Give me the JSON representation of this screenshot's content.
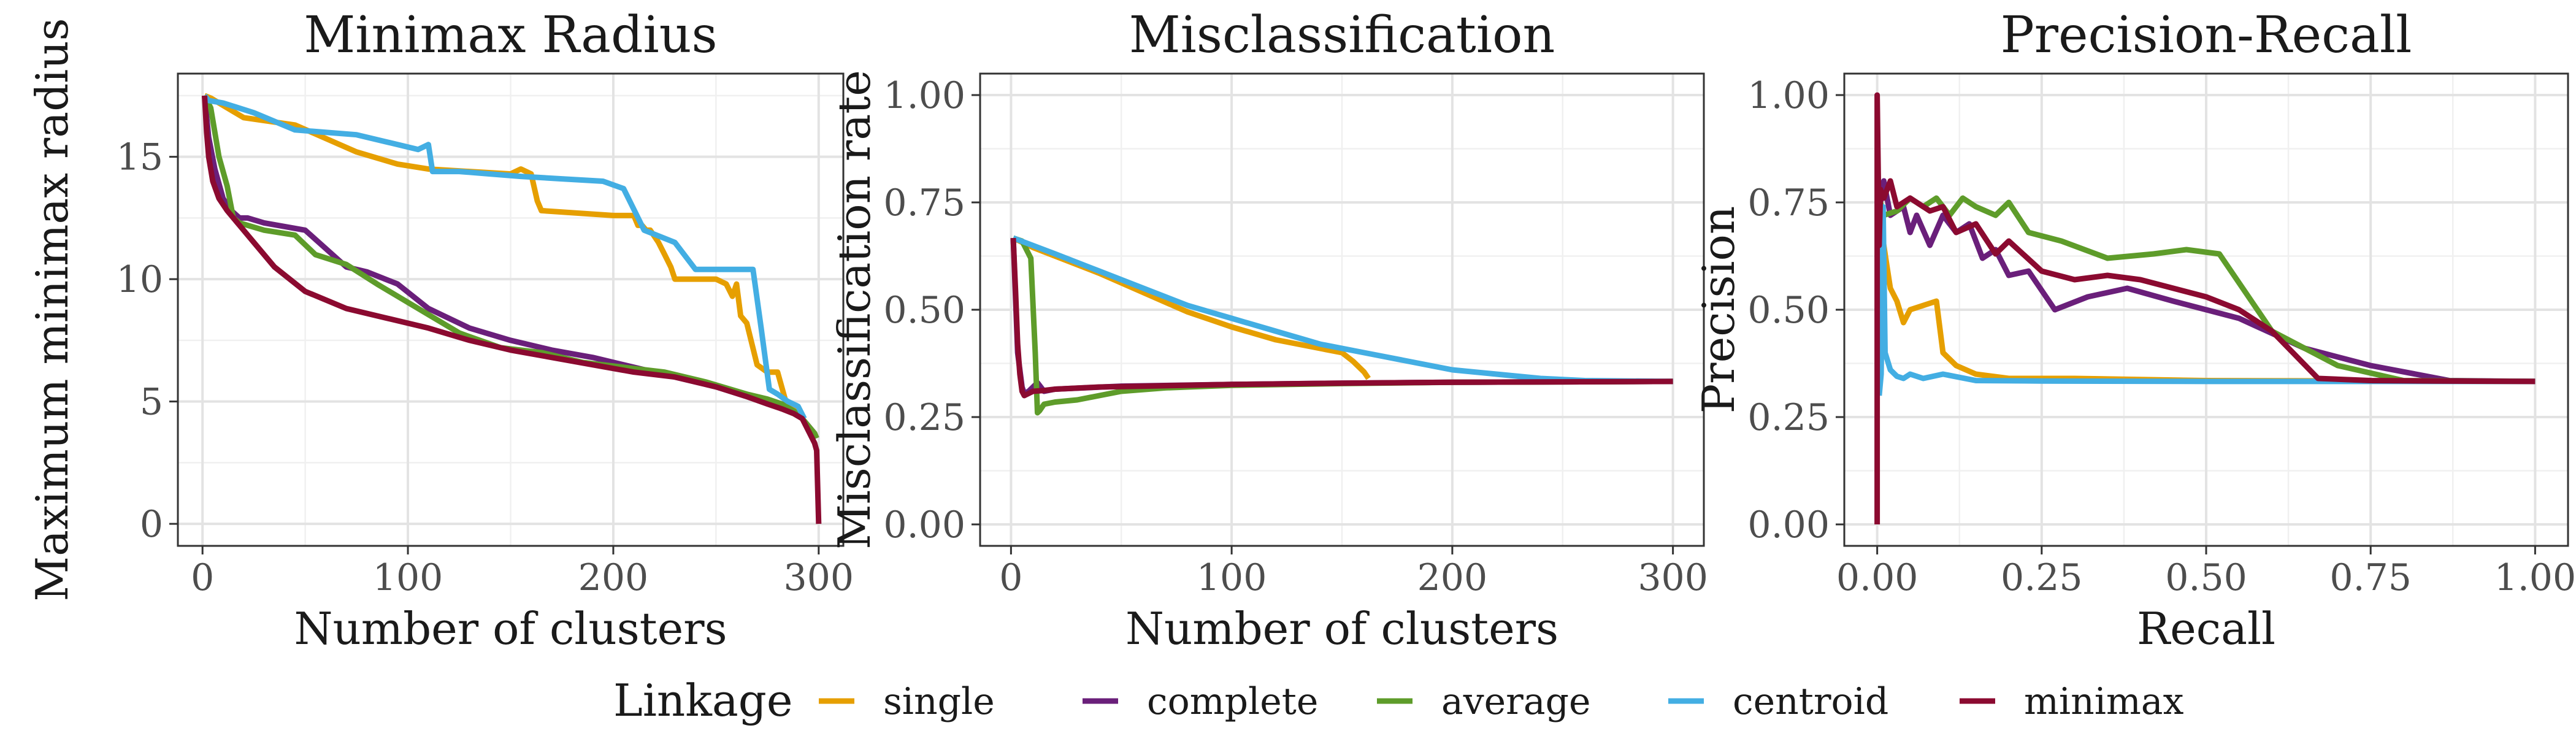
{
  "legend": {
    "title": "Linkage",
    "position": "bottom",
    "items": [
      {
        "key": "single",
        "label": "single",
        "color": "#E69F00"
      },
      {
        "key": "complete",
        "label": "complete",
        "color": "#6A1F7A"
      },
      {
        "key": "average",
        "label": "average",
        "color": "#5E9C2A"
      },
      {
        "key": "centroid",
        "label": "centroid",
        "color": "#43AEE3"
      },
      {
        "key": "minimax",
        "label": "minimax",
        "color": "#8B0A30"
      }
    ]
  },
  "chart_data": [
    {
      "type": "line",
      "title": "Minimax Radius",
      "xlabel": "Number of clusters",
      "ylabel": "Maximum minimax radius",
      "xlim": [
        -12,
        312
      ],
      "ylim": [
        -0.9,
        18.4
      ],
      "xticks": [
        0,
        100,
        200,
        300
      ],
      "yticks": [
        0,
        5,
        10,
        15
      ],
      "grid": true,
      "series": [
        {
          "key": "single",
          "x": [
            1,
            4,
            20,
            45,
            75,
            95,
            110,
            150,
            155,
            160,
            163,
            165,
            200,
            210,
            212,
            214,
            216,
            218,
            222,
            225,
            228,
            230,
            250,
            255,
            258,
            260,
            262,
            265,
            270,
            275,
            280,
            284,
            287,
            290
          ],
          "y": [
            17.5,
            17.4,
            16.6,
            16.3,
            15.2,
            14.7,
            14.5,
            14.3,
            14.5,
            14.3,
            13.2,
            12.8,
            12.6,
            12.6,
            12.2,
            12.2,
            12.0,
            12.0,
            11.5,
            11.0,
            10.5,
            10.0,
            10.0,
            9.8,
            9.3,
            9.8,
            8.5,
            8.2,
            6.5,
            6.2,
            6.2,
            5.0,
            4.9,
            4.5
          ]
        },
        {
          "key": "complete",
          "x": [
            1,
            3,
            6,
            10,
            14,
            18,
            22,
            30,
            50,
            70,
            80,
            95,
            110,
            130,
            150,
            170,
            190,
            210,
            230,
            250,
            265,
            275,
            282,
            286,
            290,
            293,
            296,
            298,
            299
          ],
          "y": [
            17.5,
            15.8,
            14.5,
            13.3,
            12.8,
            12.5,
            12.5,
            12.3,
            12.0,
            10.5,
            10.3,
            9.8,
            8.8,
            8.0,
            7.5,
            7.1,
            6.8,
            6.4,
            6.0,
            5.6,
            5.2,
            5.0,
            4.9,
            4.7,
            4.5,
            4.2,
            3.9,
            3.7,
            3.5
          ]
        },
        {
          "key": "average",
          "x": [
            1,
            4,
            8,
            12,
            15,
            18,
            22,
            30,
            45,
            55,
            70,
            85,
            105,
            125,
            145,
            165,
            185,
            205,
            225,
            245,
            265,
            275,
            282,
            286,
            290,
            293,
            296,
            298,
            299
          ],
          "y": [
            17.5,
            17.0,
            15.0,
            13.8,
            12.5,
            12.3,
            12.2,
            12.0,
            11.8,
            11.0,
            10.6,
            9.8,
            8.8,
            7.8,
            7.2,
            7.0,
            6.6,
            6.4,
            6.2,
            5.8,
            5.3,
            5.1,
            4.9,
            4.7,
            4.5,
            4.2,
            3.9,
            3.7,
            3.5
          ]
        },
        {
          "key": "centroid",
          "x": [
            1,
            3,
            10,
            25,
            45,
            75,
            90,
            105,
            110,
            112,
            125,
            140,
            155,
            175,
            195,
            205,
            215,
            230,
            240,
            260,
            268,
            272,
            276,
            280,
            285,
            290,
            293
          ],
          "y": [
            17.5,
            17.3,
            17.2,
            16.8,
            16.1,
            15.9,
            15.6,
            15.3,
            15.5,
            14.4,
            14.4,
            14.3,
            14.2,
            14.1,
            14.0,
            13.7,
            12.0,
            11.5,
            10.4,
            10.4,
            10.4,
            8.0,
            5.5,
            5.3,
            5.0,
            4.8,
            4.3
          ]
        },
        {
          "key": "minimax",
          "x": [
            1,
            2,
            3,
            5,
            8,
            12,
            18,
            25,
            35,
            50,
            70,
            90,
            110,
            130,
            150,
            170,
            190,
            210,
            230,
            250,
            265,
            275,
            282,
            288,
            292,
            295,
            298,
            299,
            300
          ],
          "y": [
            17.5,
            16.0,
            15.0,
            14.0,
            13.3,
            12.8,
            12.2,
            11.5,
            10.5,
            9.5,
            8.8,
            8.4,
            8.0,
            7.5,
            7.1,
            6.8,
            6.5,
            6.2,
            6.0,
            5.6,
            5.2,
            4.9,
            4.7,
            4.5,
            4.3,
            3.8,
            3.3,
            3.0,
            0.0
          ]
        }
      ]
    },
    {
      "type": "line",
      "title": "Misclassification",
      "xlabel": "Number of clusters",
      "ylabel": "Misclassification rate",
      "xlim": [
        -14,
        314
      ],
      "ylim": [
        -0.05,
        1.05
      ],
      "xticks": [
        0,
        100,
        200,
        300
      ],
      "yticks": [
        0.0,
        0.25,
        0.5,
        0.75,
        1.0
      ],
      "ytick_labels": [
        "0.00",
        "0.25",
        "0.50",
        "0.75",
        "1.00"
      ],
      "grid": true,
      "series": [
        {
          "key": "single",
          "x": [
            1,
            10,
            20,
            40,
            60,
            80,
            100,
            120,
            140,
            150,
            155,
            158,
            160,
            162
          ],
          "y": [
            0.667,
            0.645,
            0.625,
            0.585,
            0.54,
            0.495,
            0.46,
            0.43,
            0.41,
            0.4,
            0.38,
            0.365,
            0.355,
            0.34
          ]
        },
        {
          "key": "complete",
          "x": [
            1,
            3,
            5,
            6,
            8,
            10,
            12,
            15,
            20,
            50,
            100,
            150,
            200,
            250,
            300
          ],
          "y": [
            0.667,
            0.4,
            0.32,
            0.305,
            0.31,
            0.32,
            0.33,
            0.31,
            0.315,
            0.322,
            0.326,
            0.329,
            0.331,
            0.332,
            0.333
          ]
        },
        {
          "key": "average",
          "x": [
            1,
            5,
            9,
            11,
            12,
            13,
            15,
            20,
            30,
            40,
            50,
            70,
            100,
            150,
            200,
            250,
            300
          ],
          "y": [
            0.667,
            0.66,
            0.62,
            0.4,
            0.26,
            0.265,
            0.28,
            0.285,
            0.29,
            0.3,
            0.31,
            0.318,
            0.324,
            0.328,
            0.331,
            0.332,
            0.333
          ]
        },
        {
          "key": "centroid",
          "x": [
            1,
            20,
            40,
            60,
            80,
            100,
            120,
            140,
            160,
            180,
            200,
            220,
            240,
            260,
            280,
            300
          ],
          "y": [
            0.667,
            0.63,
            0.59,
            0.55,
            0.51,
            0.48,
            0.45,
            0.42,
            0.4,
            0.38,
            0.36,
            0.35,
            0.34,
            0.335,
            0.334,
            0.333
          ]
        },
        {
          "key": "minimax",
          "x": [
            1,
            2,
            3,
            4,
            5,
            6,
            8,
            10,
            15,
            20,
            40,
            60,
            100,
            150,
            200,
            250,
            300
          ],
          "y": [
            0.667,
            0.55,
            0.42,
            0.35,
            0.31,
            0.3,
            0.305,
            0.31,
            0.312,
            0.315,
            0.32,
            0.322,
            0.326,
            0.329,
            0.331,
            0.332,
            0.333
          ]
        }
      ]
    },
    {
      "type": "line",
      "title": "Precision-Recall",
      "xlabel": "Recall",
      "ylabel": "Precision",
      "xlim": [
        -0.05,
        1.05
      ],
      "ylim": [
        -0.05,
        1.05
      ],
      "xticks": [
        0.0,
        0.25,
        0.5,
        0.75,
        1.0
      ],
      "xtick_labels": [
        "0.00",
        "0.25",
        "0.50",
        "0.75",
        "1.00"
      ],
      "yticks": [
        0.0,
        0.25,
        0.5,
        0.75,
        1.0
      ],
      "ytick_labels": [
        "0.00",
        "0.25",
        "0.50",
        "0.75",
        "1.00"
      ],
      "grid": true,
      "series": [
        {
          "key": "single",
          "x": [
            0.005,
            0.01,
            0.015,
            0.02,
            0.03,
            0.04,
            0.05,
            0.07,
            0.09,
            0.1,
            0.12,
            0.15,
            0.2,
            0.3,
            0.5,
            0.75,
            1.0
          ],
          "y": [
            0.7,
            0.65,
            0.6,
            0.55,
            0.52,
            0.47,
            0.5,
            0.51,
            0.52,
            0.4,
            0.37,
            0.35,
            0.34,
            0.34,
            0.335,
            0.334,
            0.333
          ]
        },
        {
          "key": "complete",
          "x": [
            0.005,
            0.01,
            0.02,
            0.04,
            0.05,
            0.06,
            0.08,
            0.1,
            0.12,
            0.14,
            0.16,
            0.18,
            0.2,
            0.23,
            0.27,
            0.32,
            0.38,
            0.45,
            0.55,
            0.65,
            0.75,
            0.87,
            1.0
          ],
          "y": [
            0.75,
            0.8,
            0.72,
            0.74,
            0.68,
            0.72,
            0.65,
            0.72,
            0.68,
            0.7,
            0.62,
            0.64,
            0.58,
            0.59,
            0.5,
            0.53,
            0.55,
            0.52,
            0.48,
            0.41,
            0.37,
            0.335,
            0.333
          ]
        },
        {
          "key": "average",
          "x": [
            0.005,
            0.01,
            0.03,
            0.05,
            0.07,
            0.09,
            0.11,
            0.13,
            0.15,
            0.18,
            0.2,
            0.23,
            0.28,
            0.35,
            0.42,
            0.47,
            0.52,
            0.6,
            0.7,
            0.8,
            1.0
          ],
          "y": [
            0.75,
            0.72,
            0.73,
            0.76,
            0.74,
            0.76,
            0.72,
            0.76,
            0.74,
            0.72,
            0.75,
            0.68,
            0.66,
            0.62,
            0.63,
            0.64,
            0.63,
            0.45,
            0.37,
            0.335,
            0.333
          ]
        },
        {
          "key": "centroid",
          "x": [
            0.003,
            0.006,
            0.009,
            0.012,
            0.02,
            0.03,
            0.04,
            0.05,
            0.07,
            0.1,
            0.15,
            0.25,
            0.5,
            0.75,
            1.0
          ],
          "y": [
            0.3,
            0.35,
            0.74,
            0.4,
            0.36,
            0.345,
            0.34,
            0.35,
            0.34,
            0.35,
            0.335,
            0.334,
            0.333,
            0.333,
            0.333
          ]
        },
        {
          "key": "minimax",
          "x": [
            0.0,
            0.0,
            0.003,
            0.005,
            0.01,
            0.02,
            0.03,
            0.05,
            0.08,
            0.1,
            0.12,
            0.15,
            0.18,
            0.2,
            0.25,
            0.3,
            0.35,
            0.4,
            0.45,
            0.5,
            0.55,
            0.6,
            0.67,
            0.75,
            0.85,
            1.0
          ],
          "y": [
            0.0,
            1.0,
            0.65,
            0.78,
            0.76,
            0.8,
            0.74,
            0.76,
            0.73,
            0.74,
            0.68,
            0.7,
            0.63,
            0.66,
            0.59,
            0.57,
            0.58,
            0.57,
            0.55,
            0.53,
            0.5,
            0.45,
            0.34,
            0.335,
            0.334,
            0.333
          ]
        }
      ]
    }
  ]
}
